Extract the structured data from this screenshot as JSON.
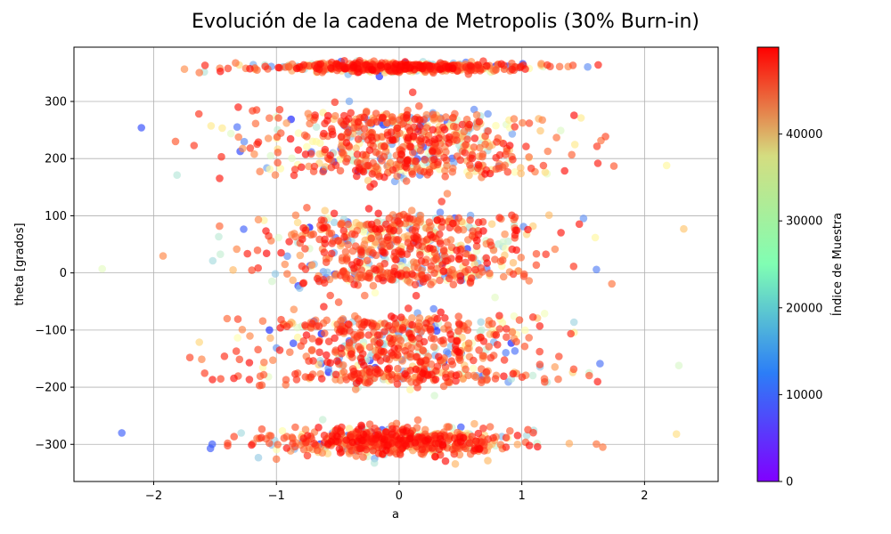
{
  "chart_data": {
    "type": "scatter",
    "title": "Evolución de la cadena de Metropolis (30% Burn-in)",
    "xlabel": "a",
    "ylabel": "theta [grados]",
    "xlim": [
      -2.65,
      2.6
    ],
    "ylim": [
      -365,
      395
    ],
    "xticks": [
      -2,
      -1,
      0,
      1,
      2
    ],
    "yticks": [
      -300,
      -200,
      -100,
      0,
      100,
      200,
      300
    ],
    "grid": true,
    "colormap": "rainbow",
    "point_alpha": 0.65,
    "colorbar": {
      "label": "Índice de Muestra",
      "range": [
        0,
        50000
      ],
      "ticks": [
        0,
        10000,
        20000,
        30000,
        40000
      ]
    },
    "clusters": [
      {
        "y_center": 360,
        "y_spread": 4,
        "x_spread": 0.45,
        "x_max": 2.05
      },
      {
        "y_center": 225,
        "y_spread": 28,
        "x_spread": 0.5,
        "x_max": 2.2
      },
      {
        "y_center": 40,
        "y_spread": 30,
        "x_spread": 0.5,
        "x_max": 2.35
      },
      {
        "y_center": -135,
        "y_spread": 30,
        "x_spread": 0.5,
        "x_max": 2.3
      },
      {
        "y_center": -295,
        "y_spread": 12,
        "x_spread": 0.45,
        "x_max": 2.3
      }
    ],
    "outliers": [
      {
        "x": -2.42,
        "y": 7
      },
      {
        "x": 2.32,
        "y": 77
      },
      {
        "x": 2.26,
        "y": -282
      },
      {
        "x": -2.26,
        "y": -280
      },
      {
        "x": 2.28,
        "y": -162
      },
      {
        "x": 2.18,
        "y": 188
      },
      {
        "x": -2.1,
        "y": 254
      }
    ]
  }
}
